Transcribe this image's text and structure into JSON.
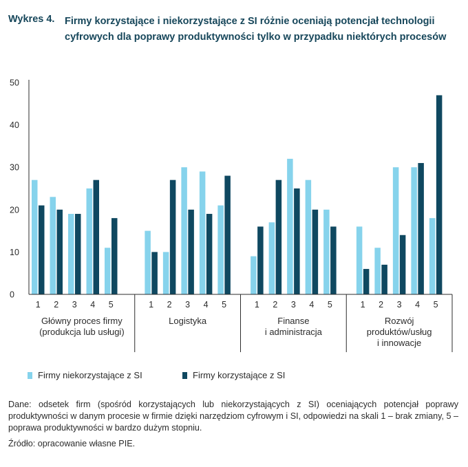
{
  "figure": {
    "label": "Wykres 4.",
    "title": "Firmy korzystające i niekorzystające z SI różnie oceniają potencjał technologii cyfrowych dla poprawy produktywności tylko w przypadku niektórych procesów"
  },
  "colors": {
    "non_users": "#86d3ec",
    "users": "#0f4860",
    "axis": "#2b2b2b",
    "title": "#16465a"
  },
  "chart_data": {
    "type": "bar",
    "title": "",
    "xlabel": "",
    "ylabel": "",
    "ylim": [
      0,
      50
    ],
    "yticks": [
      0,
      10,
      20,
      30,
      40,
      50
    ],
    "grid": false,
    "legend_position": "bottom",
    "groups": [
      {
        "name": "Główny proces firmy (produkcja lub usługi)",
        "lines": [
          "Główny proces firmy",
          "(produkcja lub usługi)"
        ],
        "categories": [
          "1",
          "2",
          "3",
          "4",
          "5"
        ]
      },
      {
        "name": "Logistyka",
        "lines": [
          "Logistyka"
        ],
        "categories": [
          "1",
          "2",
          "3",
          "4",
          "5"
        ]
      },
      {
        "name": "Finanse i administracja",
        "lines": [
          "Finanse",
          "i administracja"
        ],
        "categories": [
          "1",
          "2",
          "3",
          "4",
          "5"
        ]
      },
      {
        "name": "Rozwój produktów/usług i innowacje",
        "lines": [
          "Rozwój",
          "produktów/usług",
          "i innowacje"
        ],
        "categories": [
          "1",
          "2",
          "3",
          "4",
          "5"
        ]
      }
    ],
    "series": [
      {
        "name": "Firmy niekorzystające z SI",
        "color": "#86d3ec",
        "values": [
          [
            27,
            23,
            19,
            25,
            11
          ],
          [
            15,
            10,
            30,
            29,
            21
          ],
          [
            9,
            17,
            32,
            27,
            20
          ],
          [
            16,
            11,
            30,
            30,
            18
          ]
        ]
      },
      {
        "name": "Firmy korzystające z SI",
        "color": "#0f4860",
        "values": [
          [
            21,
            20,
            19,
            27,
            18
          ],
          [
            10,
            27,
            20,
            19,
            28
          ],
          [
            16,
            27,
            25,
            20,
            16
          ],
          [
            6,
            7,
            14,
            31,
            47
          ]
        ]
      }
    ]
  },
  "notes": {
    "data_note": "Dane: odsetek firm (spośród korzystających lub niekorzystających z SI) oceniających potencjał poprawy produktywności w danym procesie w firmie dzięki narzędziom cyfrowym i SI, odpowiedzi na skali 1 – brak zmiany, 5 – poprawa produktywności w bardzo dużym stopniu.",
    "source": "Źródło: opracowanie własne PIE."
  }
}
